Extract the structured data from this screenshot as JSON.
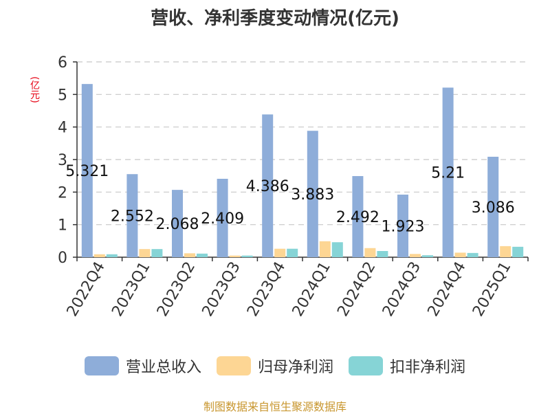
{
  "chart_data": {
    "type": "bar",
    "title": "营收、净利季度变动情况(亿元)",
    "unit_label": "(亿元)",
    "categories": [
      "2022Q4",
      "2023Q1",
      "2023Q2",
      "2023Q3",
      "2023Q4",
      "2024Q1",
      "2024Q2",
      "2024Q3",
      "2024Q4",
      "2025Q1"
    ],
    "ylim": [
      0,
      6
    ],
    "yticks": [
      0,
      1,
      2,
      3,
      4,
      5,
      6
    ],
    "grid": true,
    "legend_position": "bottom",
    "series": [
      {
        "name": "营业总收入",
        "color": "#8eadd9",
        "values": [
          5.321,
          2.552,
          2.068,
          2.409,
          4.386,
          3.883,
          2.492,
          1.923,
          5.21,
          3.086
        ],
        "data_labels": [
          "5.321",
          "2.552",
          "2.068",
          "2.409",
          "4.386",
          "3.883",
          "2.492",
          "1.923",
          "5.21",
          "3.086"
        ]
      },
      {
        "name": "归母净利润",
        "color": "#fdd694",
        "values": [
          0.09,
          0.25,
          0.12,
          0.05,
          0.26,
          0.49,
          0.28,
          0.1,
          0.14,
          0.34
        ]
      },
      {
        "name": "扣非净利润",
        "color": "#86d4d6",
        "values": [
          0.09,
          0.25,
          0.11,
          0.05,
          0.26,
          0.46,
          0.19,
          0.06,
          0.13,
          0.32
        ]
      }
    ]
  },
  "source_text": "制图数据来自恒生聚源数据库"
}
